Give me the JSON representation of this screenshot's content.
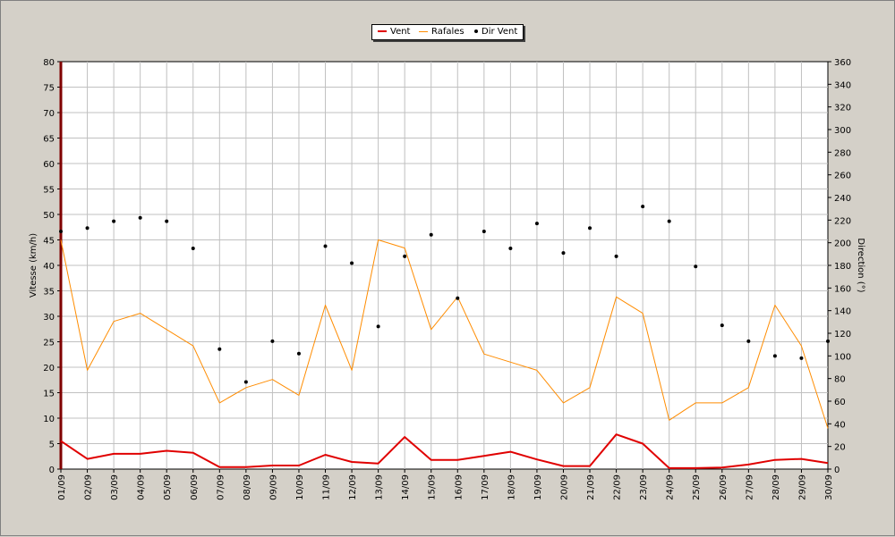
{
  "chart_data": {
    "type": "line",
    "legend": [
      {
        "name": "Vent",
        "color": "#e00000"
      },
      {
        "name": "Rafales",
        "color": "#ff8c00"
      },
      {
        "name": "Dir Vent",
        "color": "#000000"
      }
    ],
    "legend_position": "top-center",
    "categories": [
      "01/09",
      "02/09",
      "03/09",
      "04/09",
      "05/09",
      "06/09",
      "07/09",
      "08/09",
      "09/09",
      "10/09",
      "11/09",
      "12/09",
      "13/09",
      "14/09",
      "15/09",
      "16/09",
      "17/09",
      "18/09",
      "19/09",
      "20/09",
      "21/09",
      "22/09",
      "23/09",
      "24/09",
      "25/09",
      "26/09",
      "27/09",
      "28/09",
      "29/09",
      "30/09"
    ],
    "ylabel": "Vitesse (km/h)",
    "y2label": "Direction (°)",
    "ylim": [
      0,
      80
    ],
    "y2lim": [
      0,
      360
    ],
    "yticks": [
      "0",
      "5",
      "10",
      "15",
      "20",
      "25",
      "30",
      "35",
      "40",
      "45",
      "50",
      "55",
      "60",
      "65",
      "70",
      "75",
      "80"
    ],
    "y2ticks": [
      "0",
      "20",
      "40",
      "60",
      "80",
      "100",
      "120",
      "140",
      "160",
      "180",
      "200",
      "220",
      "240",
      "260",
      "280",
      "300",
      "320",
      "340",
      "360"
    ],
    "grid": true,
    "series": [
      {
        "name": "Vent",
        "axis": "left",
        "style": "line",
        "color": "#e00000",
        "values": [
          5.5,
          2,
          3,
          3,
          3.6,
          3.2,
          0.4,
          0.4,
          0.7,
          0.7,
          2.8,
          1.4,
          1.1,
          6.3,
          1.8,
          1.8,
          2.6,
          3.4,
          1.9,
          0.6,
          0.6,
          6.8,
          5,
          0.2,
          0.2,
          0.3,
          0.9,
          1.8,
          2,
          1.2
        ]
      },
      {
        "name": "Rafales",
        "axis": "left",
        "style": "line",
        "color": "#ff8c00",
        "values": [
          45,
          19.4,
          29,
          30.6,
          27.4,
          24.2,
          13,
          16,
          17.6,
          14.5,
          32.2,
          19.4,
          45,
          43.4,
          27.4,
          33.8,
          22.6,
          21,
          19.4,
          13,
          16,
          33.8,
          30.6,
          9.6,
          13,
          13,
          16,
          32.2,
          24.2,
          8
        ]
      },
      {
        "name": "Dir Vent",
        "axis": "right",
        "style": "points",
        "color": "#000000",
        "values": [
          210,
          213,
          219,
          222,
          219,
          195,
          106,
          77,
          113,
          102,
          197,
          182,
          126,
          188,
          207,
          151,
          210,
          195,
          217,
          191,
          213,
          188,
          232,
          219,
          179,
          127,
          113,
          100,
          98,
          113
        ]
      }
    ]
  }
}
